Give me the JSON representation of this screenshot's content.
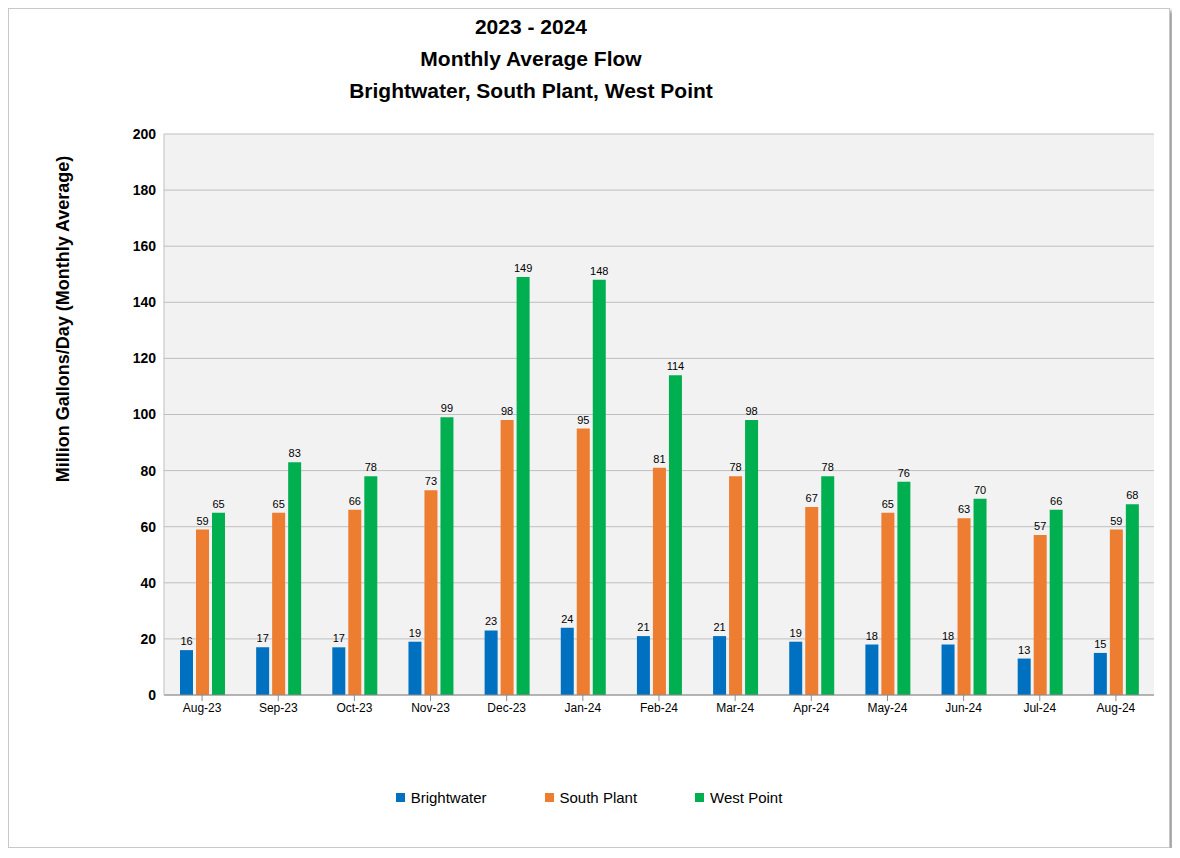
{
  "chart_data": {
    "type": "bar",
    "title": [
      "2023 - 2024",
      "Monthly Average Flow",
      "Brightwater, South Plant, West Point"
    ],
    "y_label": "Million Gallons/Day (Monthly Average)",
    "categories": [
      "Aug-23",
      "Sep-23",
      "Oct-23",
      "Nov-23",
      "Dec-23",
      "Jan-24",
      "Feb-24",
      "Mar-24",
      "Apr-24",
      "May-24",
      "Jun-24",
      "Jul-24",
      "Aug-24"
    ],
    "series": [
      {
        "name": "Brightwater",
        "color": "#0070c0",
        "values": [
          16,
          17,
          17,
          19,
          23,
          24,
          21,
          21,
          19,
          18,
          18,
          13,
          15
        ]
      },
      {
        "name": "South Plant",
        "color": "#ed7d31",
        "values": [
          59,
          65,
          66,
          73,
          98,
          95,
          81,
          78,
          67,
          65,
          63,
          57,
          59
        ]
      },
      {
        "name": "West Point",
        "color": "#00b050",
        "values": [
          65,
          83,
          78,
          99,
          149,
          148,
          114,
          98,
          78,
          76,
          70,
          66,
          68
        ]
      }
    ],
    "ylim": [
      0,
      200
    ],
    "yticks": [
      0,
      20,
      40,
      60,
      80,
      100,
      120,
      140,
      160,
      180,
      200
    ],
    "grid": true,
    "legend": "bottom",
    "data_labels": true
  }
}
